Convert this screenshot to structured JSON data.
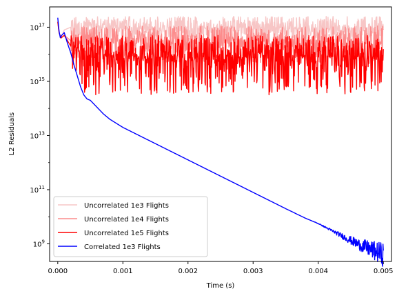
{
  "chart_data": {
    "type": "line",
    "title": "",
    "xlabel": "Time (s)",
    "ylabel": "L2 Residuals",
    "xlim": [
      -0.000125,
      0.005125
    ],
    "ylim_log10": [
      8.35,
      17.75
    ],
    "y_scale": "log",
    "x_ticks": [
      0.0,
      0.001,
      0.002,
      0.003,
      0.004,
      0.005
    ],
    "x_tick_labels": [
      "0.000",
      "0.001",
      "0.002",
      "0.003",
      "0.004",
      "0.005"
    ],
    "y_tick_exponents": [
      9,
      11,
      13,
      15,
      17
    ],
    "y_tick_base": "10",
    "grid": false,
    "legend_position": "lower-left",
    "series": [
      {
        "name": "Uncorrelated 1e3 Flights",
        "color": "#f7c6c6",
        "plateau_log10": 16.95,
        "noise_low_log10": 16.5,
        "noise_high_log10": 17.4,
        "x": [
          0.0,
          2e-05,
          5e-05,
          0.0001,
          0.0002,
          0.0005,
          0.001,
          0.002,
          0.003,
          0.004,
          0.005
        ],
        "log10_y": [
          17.2,
          16.8,
          16.6,
          16.9,
          17.0,
          17.05,
          17.0,
          16.95,
          17.0,
          16.95,
          16.95
        ]
      },
      {
        "name": "Uncorrelated 1e4 Flights",
        "color": "#fc8c8c",
        "plateau_log10": 16.4,
        "noise_low_log10": 15.7,
        "noise_high_log10": 17.05,
        "x": [
          0.0,
          2e-05,
          5e-05,
          0.0001,
          0.0002,
          0.0005,
          0.001,
          0.002,
          0.003,
          0.004,
          0.005
        ],
        "log10_y": [
          17.2,
          16.8,
          16.6,
          16.7,
          16.5,
          16.45,
          16.4,
          16.4,
          16.4,
          16.4,
          16.4
        ]
      },
      {
        "name": "Uncorrelated 1e5 Flights",
        "color": "#ff0000",
        "plateau_log10": 15.9,
        "noise_low_log10": 14.5,
        "noise_high_log10": 16.7,
        "x": [
          0.0,
          2e-05,
          5e-05,
          0.0001,
          0.0002,
          0.0005,
          0.001,
          0.002,
          0.003,
          0.004,
          0.005
        ],
        "log10_y": [
          17.2,
          16.8,
          16.6,
          16.7,
          16.3,
          15.9,
          15.9,
          15.9,
          15.9,
          15.9,
          15.9
        ]
      },
      {
        "name": "Correlated 1e3 Flights",
        "color": "#0000ff",
        "x": [
          0.0,
          2e-05,
          4e-05,
          6e-05,
          0.0001,
          0.00015,
          0.0002,
          0.00025,
          0.0003,
          0.00035,
          0.0004,
          0.00045,
          0.0005,
          0.0006,
          0.0007,
          0.0008,
          0.0009,
          0.001,
          0.0015,
          0.002,
          0.0025,
          0.003,
          0.0035,
          0.0038,
          0.004,
          0.0042,
          0.0044,
          0.0046,
          0.0048,
          0.005
        ],
        "log10_y": [
          17.35,
          16.85,
          16.6,
          16.7,
          16.8,
          16.4,
          16.05,
          15.6,
          15.2,
          14.8,
          14.5,
          14.35,
          14.3,
          14.05,
          13.8,
          13.6,
          13.45,
          13.3,
          12.7,
          12.1,
          11.5,
          10.9,
          10.3,
          9.95,
          9.75,
          9.5,
          9.25,
          9.0,
          8.8,
          8.6
        ]
      }
    ]
  }
}
